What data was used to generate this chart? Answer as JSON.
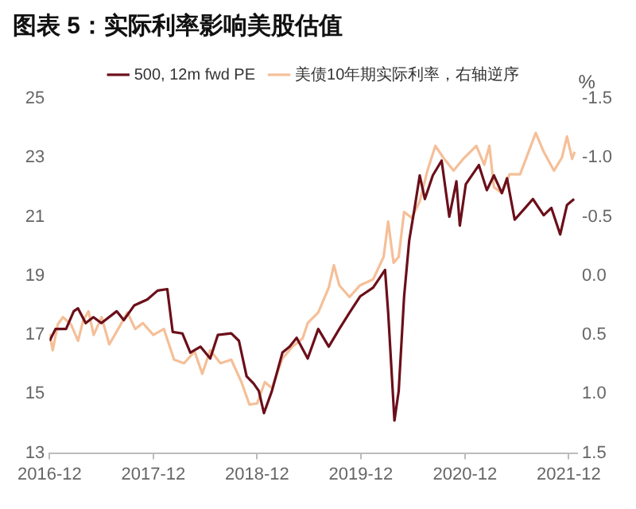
{
  "chart_data": {
    "type": "line",
    "title": "图表 5：实际利率影响美股估值",
    "y2label": "%",
    "xlim": [
      "2016-12",
      "2021-12-31"
    ],
    "xticks": [
      "2016-12",
      "2017-12",
      "2018-12",
      "2019-12",
      "2020-12",
      "2021-12"
    ],
    "ylim": [
      13,
      25
    ],
    "yticks": [
      13,
      15,
      17,
      19,
      21,
      23,
      25
    ],
    "y2lim": [
      1.5,
      -1.5
    ],
    "y2ticks": [
      {
        "value": 1.5,
        "label": "1.5"
      },
      {
        "value": 1.0,
        "label": "1.0"
      },
      {
        "value": 0.5,
        "label": "0.5"
      },
      {
        "value": 0.0,
        "label": "0.0"
      },
      {
        "value": -0.5,
        "label": "-0.5"
      },
      {
        "value": -1.0,
        "label": "-1.0"
      },
      {
        "value": -1.5,
        "label": "-1.5"
      }
    ],
    "legend": "top",
    "marker": "none",
    "line_style": "solid",
    "series": [
      {
        "name": "500, 12m fwd PE",
        "color": "#6b0f1a",
        "x": [
          "2016-12-01",
          "2016-12-22",
          "2017-01-28",
          "2017-02-24",
          "2017-03-11",
          "2017-04-07",
          "2017-05-04",
          "2017-06-01",
          "2017-07-25",
          "2017-08-19",
          "2017-09-25",
          "2017-11-10",
          "2017-12-16",
          "2018-01-19",
          "2018-02-07",
          "2018-03-13",
          "2018-04-10",
          "2018-05-16",
          "2018-06-19",
          "2018-07-16",
          "2018-09-01",
          "2018-09-28",
          "2018-10-25",
          "2018-11-19",
          "2018-12-07",
          "2018-12-25",
          "2019-01-22",
          "2019-02-28",
          "2019-03-25",
          "2019-04-19",
          "2019-05-28",
          "2019-07-04",
          "2019-08-10",
          "2019-09-16",
          "2019-10-22",
          "2019-11-28",
          "2020-01-13",
          "2020-02-24",
          "2020-03-06",
          "2020-03-28",
          "2020-04-12",
          "2020-05-01",
          "2020-05-19",
          "2020-06-07",
          "2020-06-25",
          "2020-07-13",
          "2020-08-10",
          "2020-09-10",
          "2020-10-07",
          "2020-11-01",
          "2020-11-13",
          "2020-12-04",
          "2021-01-19",
          "2021-02-16",
          "2021-03-13",
          "2021-04-10",
          "2021-04-28",
          "2021-05-25",
          "2021-07-01",
          "2021-07-28",
          "2021-09-04",
          "2021-10-01",
          "2021-11-01",
          "2021-11-25",
          "2021-12-20"
        ],
        "values": [
          16.8,
          17.2,
          17.2,
          17.8,
          17.9,
          17.4,
          17.6,
          17.4,
          17.8,
          17.5,
          18.0,
          18.2,
          18.5,
          18.55,
          17.1,
          17.05,
          16.4,
          16.6,
          16.2,
          17.0,
          17.05,
          16.8,
          15.6,
          15.35,
          15.1,
          14.35,
          15.1,
          16.4,
          16.6,
          16.9,
          16.2,
          17.2,
          16.6,
          17.2,
          17.75,
          18.3,
          18.6,
          19.2,
          17.75,
          14.1,
          15.1,
          18.3,
          20.2,
          21.3,
          22.4,
          21.6,
          22.4,
          22.9,
          21.0,
          22.2,
          20.7,
          22.1,
          22.75,
          21.9,
          22.4,
          21.8,
          22.3,
          20.9,
          21.3,
          21.6,
          21.05,
          21.3,
          20.4,
          21.4,
          21.6
        ]
      },
      {
        "name": "美债10年期实际利率，右轴逆序",
        "color": "#f5bf98",
        "axis": "y2",
        "x": [
          "2016-12-01",
          "2016-12-12",
          "2016-12-30",
          "2017-01-17",
          "2017-02-14",
          "2017-03-11",
          "2017-03-29",
          "2017-04-17",
          "2017-05-05",
          "2017-06-02",
          "2017-06-29",
          "2017-08-04",
          "2017-09-01",
          "2017-09-28",
          "2017-10-25",
          "2017-12-01",
          "2018-01-07",
          "2018-02-12",
          "2018-03-19",
          "2018-04-25",
          "2018-05-22",
          "2018-06-19",
          "2018-07-25",
          "2018-09-01",
          "2018-10-07",
          "2018-11-04",
          "2018-12-01",
          "2018-12-28",
          "2019-01-22",
          "2019-02-28",
          "2019-04-04",
          "2019-05-10",
          "2019-05-28",
          "2019-07-04",
          "2019-08-10",
          "2019-08-28",
          "2019-09-16",
          "2019-10-22",
          "2019-11-28",
          "2020-01-13",
          "2020-02-19",
          "2020-03-06",
          "2020-03-25",
          "2020-04-12",
          "2020-05-01",
          "2020-05-28",
          "2020-06-25",
          "2020-07-22",
          "2020-08-19",
          "2020-09-16",
          "2020-10-22",
          "2020-11-25",
          "2021-01-10",
          "2021-02-07",
          "2021-02-25",
          "2021-03-13",
          "2021-04-10",
          "2021-05-07",
          "2021-06-13",
          "2021-08-07",
          "2021-09-04",
          "2021-10-10",
          "2021-11-07",
          "2021-11-25",
          "2021-12-13",
          "2021-12-22"
        ],
        "values": [
          0.49,
          0.63,
          0.41,
          0.35,
          0.41,
          0.55,
          0.38,
          0.3,
          0.5,
          0.35,
          0.58,
          0.43,
          0.31,
          0.45,
          0.4,
          0.5,
          0.45,
          0.71,
          0.74,
          0.64,
          0.83,
          0.63,
          0.74,
          0.71,
          0.9,
          1.09,
          1.08,
          0.9,
          0.95,
          0.7,
          0.6,
          0.53,
          0.4,
          0.31,
          0.1,
          -0.09,
          0.08,
          0.18,
          0.08,
          0.03,
          -0.16,
          -0.46,
          -0.11,
          -0.16,
          -0.54,
          -0.49,
          -0.63,
          -0.89,
          -1.1,
          -1.0,
          -0.89,
          -0.99,
          -1.1,
          -0.94,
          -1.1,
          -0.75,
          -0.7,
          -0.86,
          -0.86,
          -1.21,
          -1.05,
          -0.89,
          -1.0,
          -1.18,
          -0.99,
          -1.05
        ]
      }
    ]
  }
}
